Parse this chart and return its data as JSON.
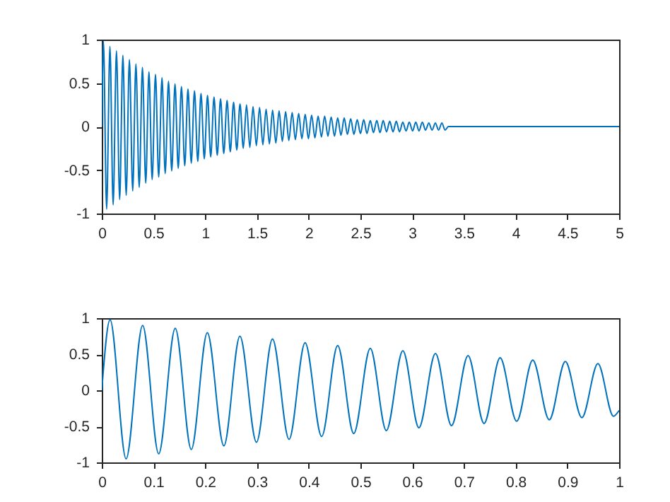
{
  "chart_data": [
    {
      "type": "line",
      "color": "#0072bd",
      "xlim": [
        0,
        5
      ],
      "ylim": [
        -1,
        1
      ],
      "xticks": [
        0,
        0.5,
        1,
        1.5,
        2,
        2.5,
        3,
        3.5,
        4,
        4.5,
        5
      ],
      "yticks": [
        -1,
        -0.5,
        0,
        0.5,
        1
      ],
      "x": [
        0,
        0.016,
        0.047,
        0.079,
        0.11,
        0.142,
        0.173,
        0.204,
        0.236,
        0.267,
        0.299,
        0.33,
        0.362,
        0.393,
        0.425,
        0.456,
        0.487,
        0.519,
        0.55,
        0.582,
        0.613,
        0.645,
        0.676,
        0.708,
        0.739,
        0.77,
        0.802,
        0.833,
        0.865,
        0.896,
        0.928,
        0.959,
        0.991,
        1.022,
        1.053,
        1.085,
        1.116,
        1.148,
        1.179,
        1.211,
        1.242,
        1.274,
        1.305,
        1.336,
        1.368,
        1.399,
        1.431,
        1.462,
        1.494,
        1.525,
        1.557,
        1.588,
        1.62,
        1.651,
        1.682,
        1.714,
        1.745,
        1.777,
        1.808,
        1.84,
        1.871,
        1.903,
        1.934,
        1.966,
        1.997,
        2.028,
        2.06,
        2.091,
        2.123,
        2.154,
        2.186,
        2.217,
        2.249,
        2.28,
        2.312,
        2.343,
        2.374,
        2.406,
        2.437,
        2.469,
        2.5,
        2.532,
        2.563,
        2.595,
        2.626,
        2.658,
        2.689,
        2.72,
        2.752,
        2.783,
        2.815,
        2.846,
        2.878,
        2.909,
        2.941,
        2.972,
        3.004,
        3.035,
        3.066,
        3.098,
        3.129,
        3.161,
        3.192,
        3.224,
        3.255,
        3.287,
        3.318,
        3.35,
        4,
        5
      ],
      "values": [
        0,
        0.98,
        -0.95,
        0.92,
        -0.9,
        0.87,
        -0.84,
        0.82,
        -0.79,
        0.77,
        -0.74,
        0.72,
        -0.7,
        0.68,
        -0.65,
        0.63,
        -0.61,
        0.6,
        -0.58,
        0.56,
        -0.54,
        0.52,
        -0.51,
        0.49,
        -0.48,
        0.46,
        -0.45,
        0.43,
        -0.42,
        0.41,
        -0.4,
        0.38,
        -0.37,
        0.36,
        -0.35,
        0.34,
        -0.33,
        0.32,
        -0.31,
        0.3,
        -0.29,
        0.28,
        -0.27,
        0.26,
        -0.25,
        0.25,
        -0.24,
        0.23,
        -0.22,
        0.22,
        -0.21,
        0.2,
        -0.2,
        0.19,
        -0.19,
        0.18,
        -0.17,
        0.17,
        -0.16,
        0.16,
        -0.15,
        0.15,
        -0.14,
        0.14,
        -0.14,
        0.13,
        -0.13,
        0.12,
        -0.12,
        0.12,
        -0.11,
        0.11,
        -0.11,
        0.1,
        -0.1,
        0.1,
        -0.09,
        0.09,
        -0.09,
        0.08,
        -0.08,
        0.08,
        -0.08,
        0.07,
        -0.07,
        0.07,
        -0.07,
        0.07,
        -0.06,
        0.06,
        -0.06,
        0.06,
        -0.06,
        0.05,
        -0.05,
        0.05,
        -0.05,
        0.05,
        -0.05,
        0.05,
        -0.04,
        0.04,
        -0.04,
        0.04,
        -0.04,
        0.04,
        -0.04,
        0,
        0,
        0
      ]
    },
    {
      "type": "line",
      "color": "#0072bd",
      "xlim": [
        0,
        1
      ],
      "ylim": [
        -1,
        1
      ],
      "xticks": [
        0,
        0.1,
        0.2,
        0.3,
        0.4,
        0.5,
        0.6,
        0.7,
        0.8,
        0.9,
        1
      ],
      "yticks": [
        -1,
        -0.5,
        0,
        0.5,
        1
      ],
      "x": [
        0,
        0.016,
        0.047,
        0.079,
        0.11,
        0.142,
        0.173,
        0.204,
        0.236,
        0.267,
        0.299,
        0.33,
        0.362,
        0.393,
        0.425,
        0.456,
        0.487,
        0.519,
        0.55,
        0.582,
        0.613,
        0.645,
        0.676,
        0.708,
        0.739,
        0.77,
        0.802,
        0.833,
        0.865,
        0.896,
        0.928,
        0.959,
        0.989,
        1
      ],
      "values": [
        0,
        0.98,
        -0.95,
        0.9,
        -0.88,
        0.86,
        -0.82,
        0.8,
        -0.77,
        0.75,
        -0.72,
        0.71,
        -0.68,
        0.66,
        -0.64,
        0.62,
        -0.6,
        0.58,
        -0.56,
        0.55,
        -0.52,
        0.51,
        -0.49,
        0.48,
        -0.46,
        0.45,
        -0.43,
        0.42,
        -0.41,
        0.4,
        -0.38,
        0.37,
        -0.36,
        -0.28
      ]
    }
  ]
}
